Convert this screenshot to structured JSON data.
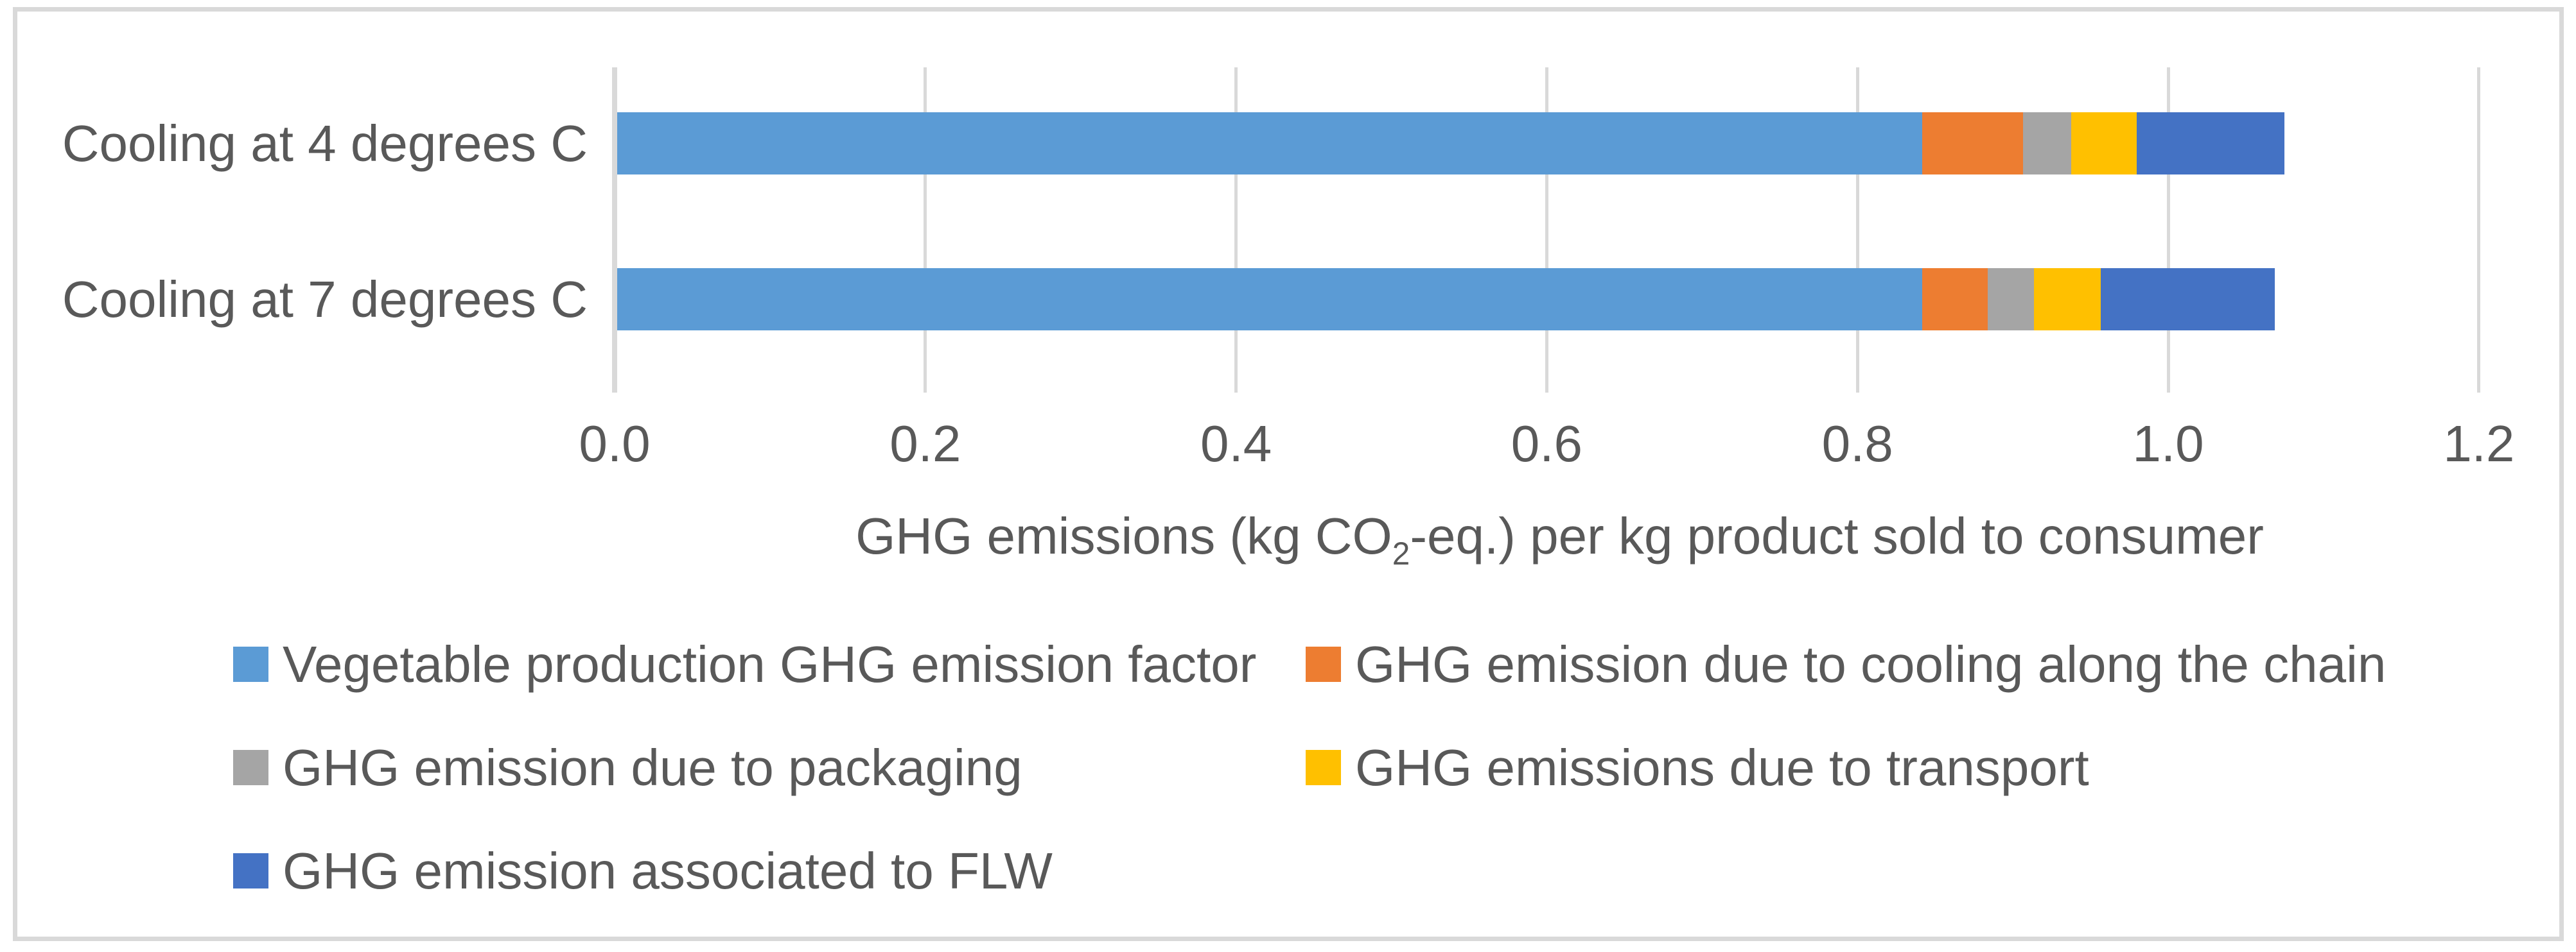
{
  "figure": {
    "background": "#FFFFFF",
    "frame_color": "#D9D9D9",
    "text_color": "#595959",
    "gridline_color": "#D9D9D9"
  },
  "chart_data": {
    "type": "bar",
    "orientation": "horizontal",
    "stacked": true,
    "grid": "vertical",
    "legend_position": "bottom-left",
    "legend_columns": 2,
    "categories": [
      "Cooling at 4 degrees C",
      "Cooling at 7 degrees C"
    ],
    "series": [
      {
        "name": "Vegetable production GHG emission factor",
        "color": "#5B9BD5",
        "values": [
          0.84,
          0.84
        ]
      },
      {
        "name": "GHG emission due to cooling along the chain",
        "color": "#ED7D31",
        "values": [
          0.065,
          0.042
        ]
      },
      {
        "name": "GHG emission due to packaging",
        "color": "#A5A5A5",
        "values": [
          0.031,
          0.03
        ]
      },
      {
        "name": "GHG emissions due to transport",
        "color": "#FFC000",
        "values": [
          0.042,
          0.043
        ]
      },
      {
        "name": "GHG emission associated to FLW",
        "color": "#4472C4",
        "values": [
          0.095,
          0.112
        ]
      }
    ],
    "totals": [
      1.073,
      1.067
    ],
    "xlabel": {
      "prefix": "GHG emissions (kg CO",
      "sub": "2",
      "suffix": "-eq.) per kg product sold to consumer"
    },
    "xticks": [
      "0.0",
      "0.2",
      "0.4",
      "0.6",
      "0.8",
      "1.0",
      "1.2"
    ],
    "xlim": [
      0.0,
      1.2
    ]
  }
}
